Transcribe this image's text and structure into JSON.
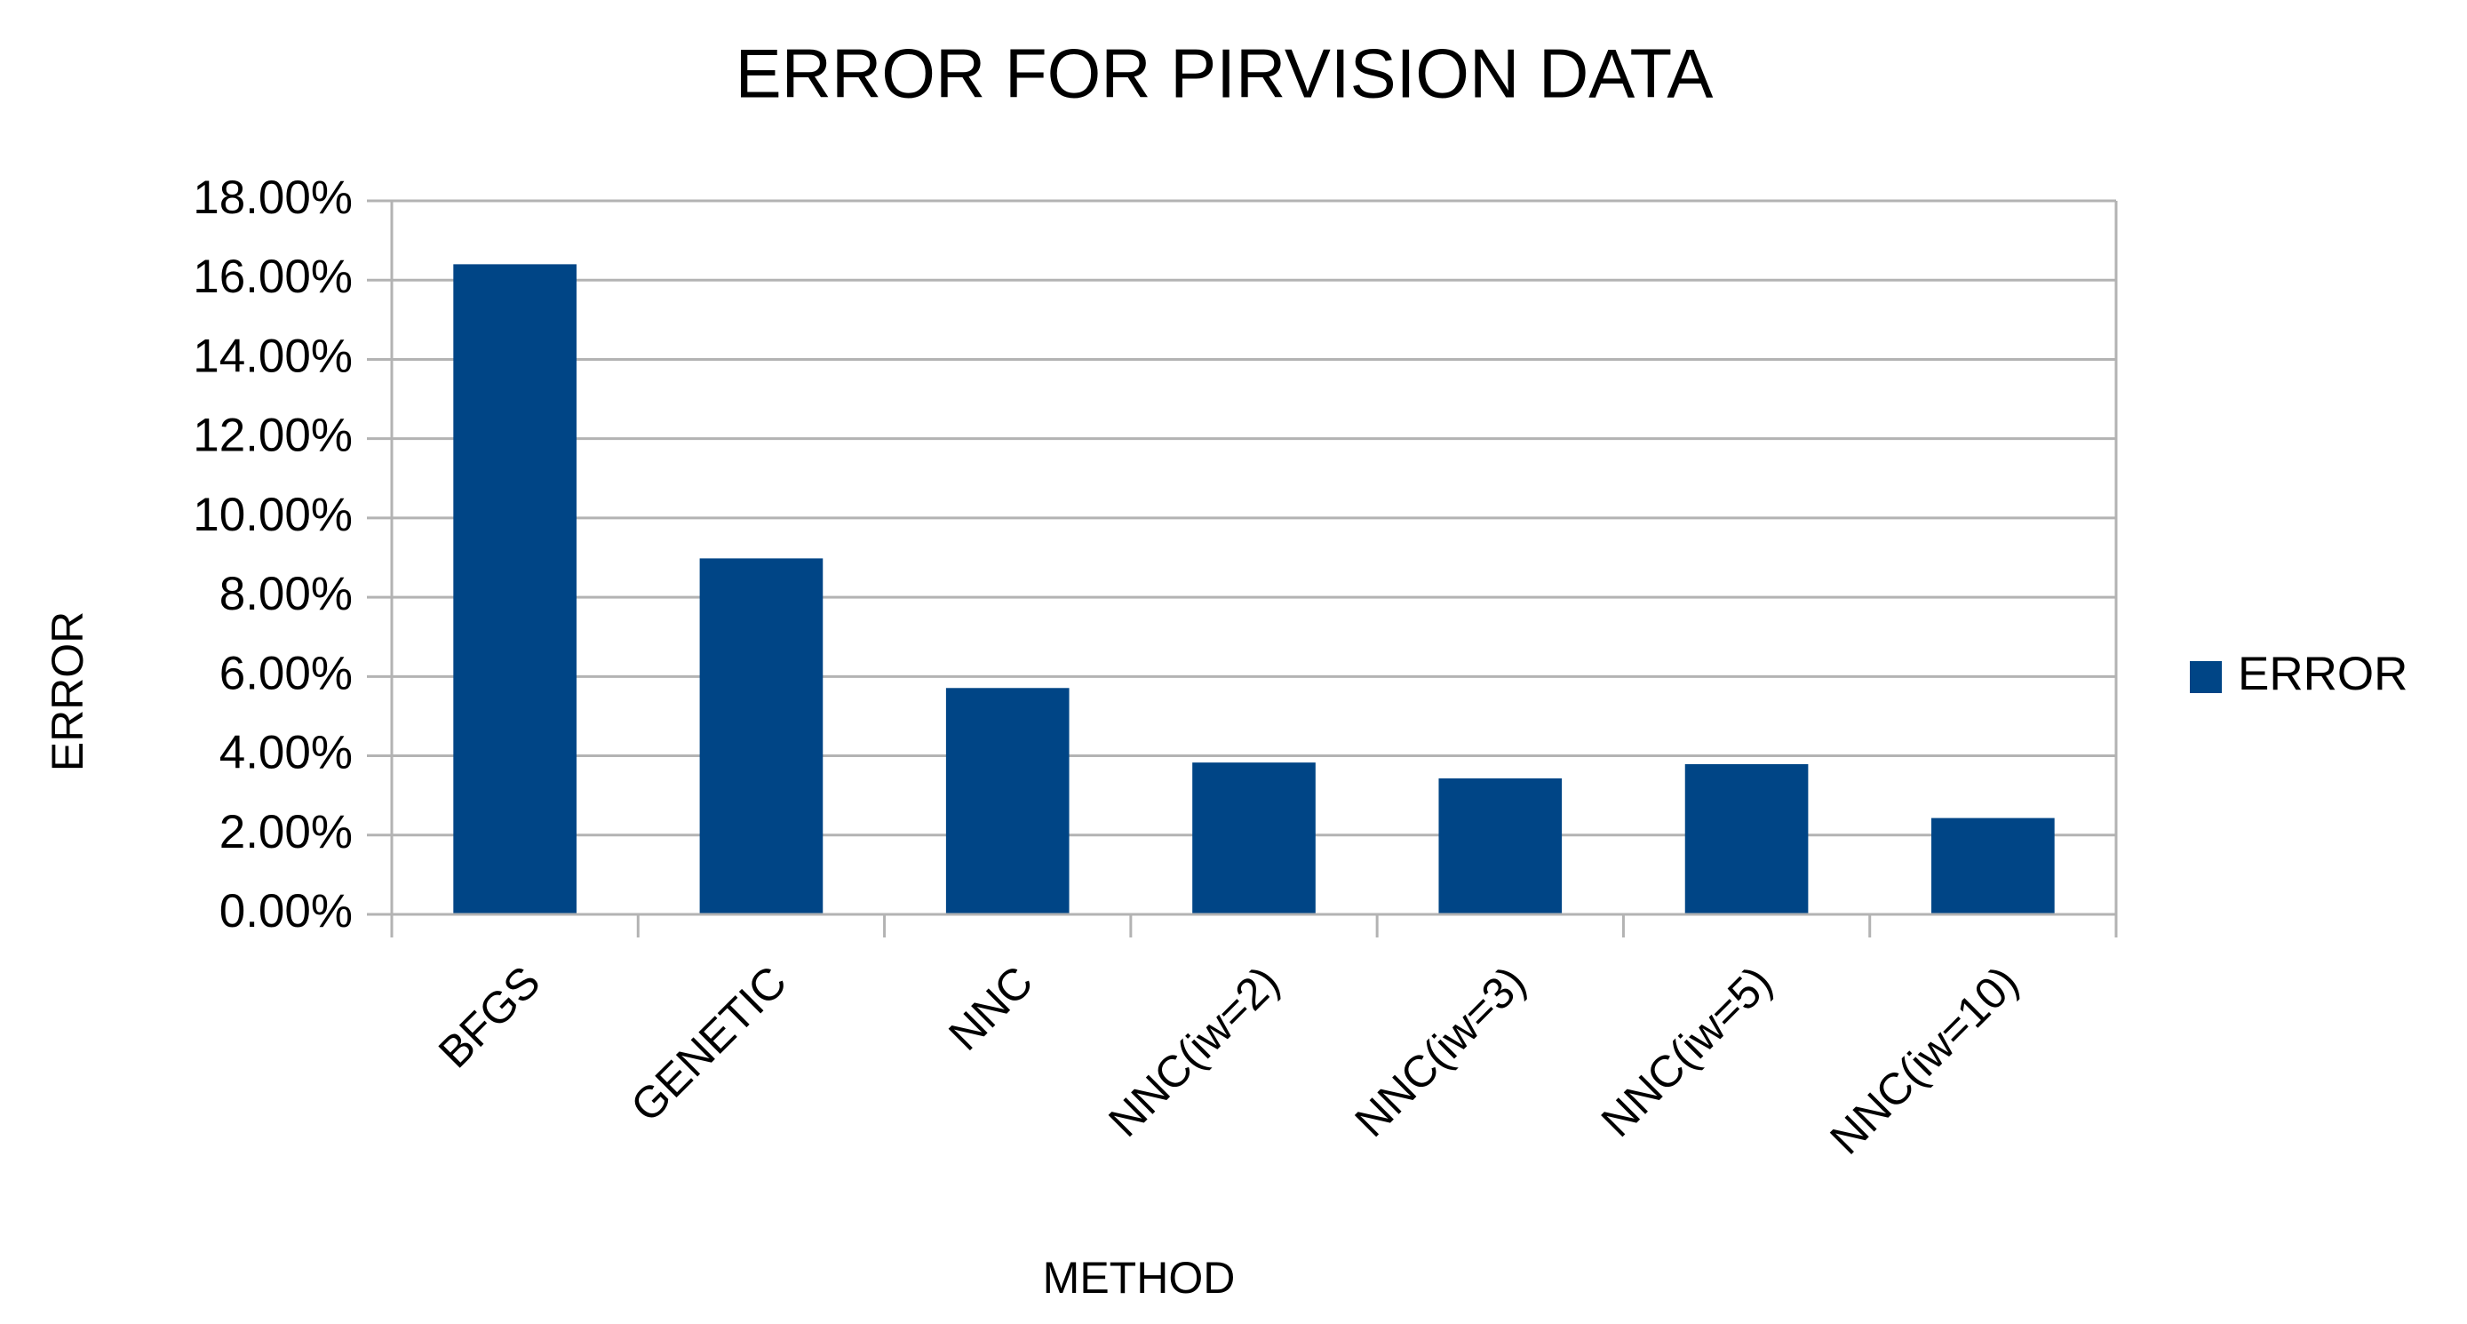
{
  "chart_data": {
    "type": "bar",
    "title": "ERROR FOR PIRVISION DATA",
    "x_label": "METHOD",
    "y_label": "ERROR",
    "categories": [
      "BFGS",
      "GENETIC",
      "NNC",
      "NNC(iw=2)",
      "NNC(iw=3)",
      "NNC(iw=5)",
      "NNC(iw=10)"
    ],
    "series": [
      {
        "name": "ERROR",
        "color": "#004586",
        "values": [
          16.4,
          8.98,
          5.71,
          3.83,
          3.43,
          3.79,
          2.43
        ]
      }
    ],
    "ylim": [
      0,
      18
    ],
    "yticks": [
      {
        "value": 0,
        "label": "0.00%"
      },
      {
        "value": 2,
        "label": "2.00%"
      },
      {
        "value": 4,
        "label": "4.00%"
      },
      {
        "value": 6,
        "label": "6.00%"
      },
      {
        "value": 8,
        "label": "8.00%"
      },
      {
        "value": 10,
        "label": "10.00%"
      },
      {
        "value": 12,
        "label": "12.00%"
      },
      {
        "value": 14,
        "label": "14.00%"
      },
      {
        "value": 16,
        "label": "16.00%"
      },
      {
        "value": 18,
        "label": "18.00%"
      }
    ],
    "grid": true,
    "legend": "right"
  }
}
